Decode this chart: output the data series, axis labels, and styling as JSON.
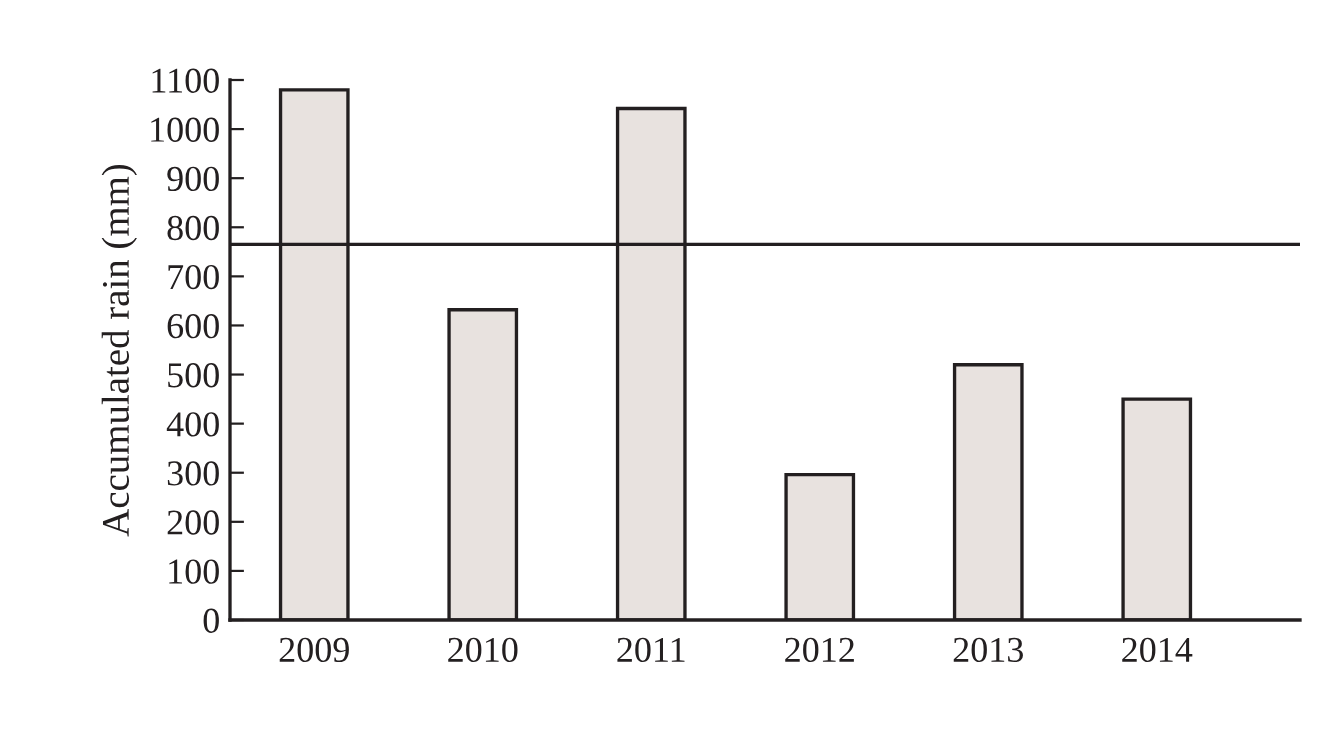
{
  "chart_data": {
    "type": "bar",
    "ylabel": "Accumulated rain (mm)",
    "categories": [
      "2009",
      "2010",
      "2011",
      "2012",
      "2013",
      "2014"
    ],
    "values": [
      1080,
      632,
      1042,
      296,
      520,
      450
    ],
    "color": "#e8e2df",
    "ylim": [
      0,
      1100
    ],
    "yticks": [
      0,
      100,
      200,
      300,
      400,
      500,
      600,
      700,
      800,
      900,
      1000,
      1100
    ],
    "ref_lines": [
      {
        "axis": "y",
        "value": 765,
        "color": "#231f20",
        "line_style": "solid"
      }
    ],
    "grid": false,
    "legend": false
  }
}
